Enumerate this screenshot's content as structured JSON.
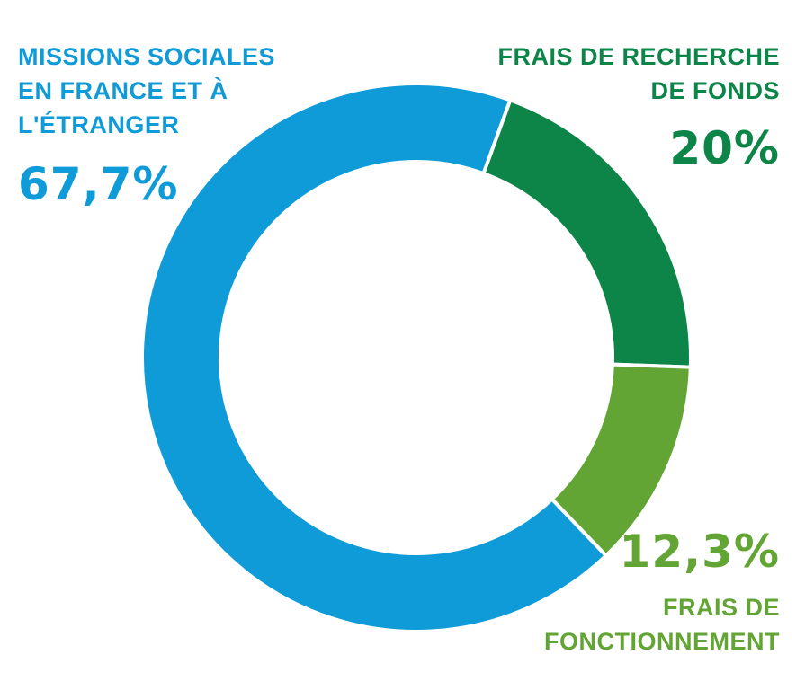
{
  "chart_data": {
    "type": "pie",
    "categories": [
      "MISSIONS SOCIALES EN FRANCE ET À L'ÉTRANGER",
      "FRAIS DE RECHERCHE DE FONDS",
      "FRAIS DE FONCTIONNEMENT"
    ],
    "values": [
      67.7,
      20,
      12.3
    ],
    "value_labels": [
      "67,7%",
      "20%",
      "12,3%"
    ],
    "colors": [
      "#0f9bd7",
      "#0e8548",
      "#62a534"
    ],
    "donut": true
  }
}
